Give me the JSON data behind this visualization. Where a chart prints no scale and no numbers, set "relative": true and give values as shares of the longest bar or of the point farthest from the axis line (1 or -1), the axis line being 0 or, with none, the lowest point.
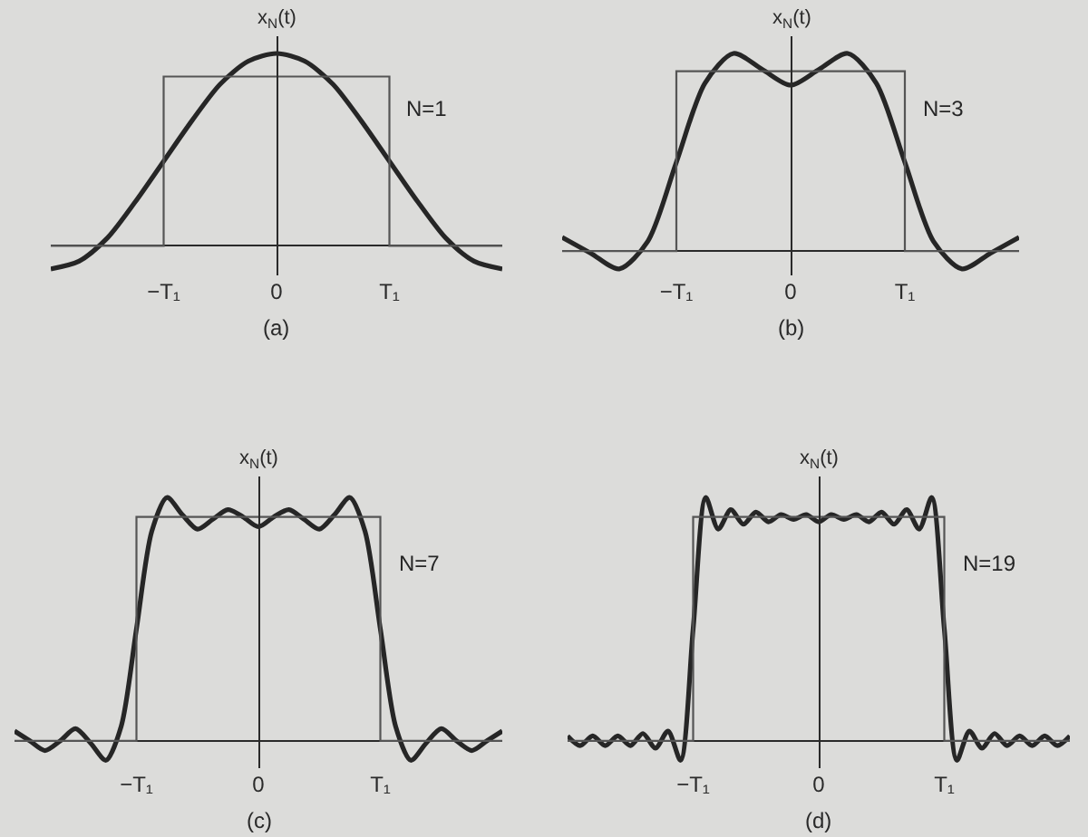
{
  "chart_data": [
    {
      "type": "line",
      "ylabel": "x$_{N}$(t)",
      "relative": true,
      "annotations": [
        "(a)"
      ],
      "categories": [
        null,
        null,
        null,
        null,
        "−T₁",
        null,
        null,
        null,
        "0",
        null,
        null,
        null,
        "T₁",
        null,
        null,
        null,
        null
      ],
      "series": [
        {
          "name": "N=1",
          "color": "#262626",
          "values": [
            -0.12,
            -0.08,
            0.04,
            0.23,
            0.44,
            0.65,
            0.84,
            0.96,
            1,
            0.96,
            0.84,
            0.65,
            0.44,
            0.23,
            0.04,
            -0.08,
            -0.12
          ]
        },
        {
          "type": "step",
          "color": "#555555",
          "values": [
            0,
            0,
            0,
            0,
            0.88,
            0.88,
            0.88,
            0.88,
            0.88,
            0.88,
            0.88,
            0.88,
            0,
            0,
            0,
            0,
            0
          ]
        }
      ]
    },
    {
      "type": "line",
      "ylabel": "x$_{N}$(t)",
      "relative": true,
      "annotations": [
        "(b)"
      ],
      "categories": [
        null,
        null,
        null,
        null,
        "−T₁",
        null,
        null,
        null,
        "0",
        null,
        null,
        null,
        "T₁",
        null,
        null,
        null,
        null
      ],
      "series": [
        {
          "name": "N=3",
          "color": "#262626",
          "values": [
            0.07,
            -0.01,
            -0.09,
            0.05,
            0.45,
            0.85,
            1,
            0.92,
            0.84,
            0.92,
            1,
            0.85,
            0.45,
            0.05,
            -0.09,
            -0.01,
            0.07
          ]
        },
        {
          "type": "step",
          "color": "#555555",
          "values": [
            0,
            0,
            0,
            0,
            0.91,
            0.91,
            0.91,
            0.91,
            0.91,
            0.91,
            0.91,
            0.91,
            0,
            0,
            0,
            0,
            0
          ]
        }
      ]
    },
    {
      "type": "line",
      "ylabel": "x$_{N}$(t)",
      "relative": true,
      "annotations": [
        "(c)"
      ],
      "categories": [
        null,
        null,
        null,
        null,
        null,
        null,
        null,
        null,
        "−T₁",
        null,
        null,
        null,
        null,
        null,
        null,
        null,
        "0",
        null,
        null,
        null,
        null,
        null,
        null,
        null,
        "T₁",
        null,
        null,
        null,
        null,
        null,
        null,
        null,
        null
      ],
      "series": [
        {
          "name": "N=7",
          "color": "#262626",
          "values": [
            0.04,
            0,
            -0.04,
            0,
            0.05,
            -0.01,
            -0.08,
            0.06,
            0.46,
            0.86,
            1,
            0.93,
            0.87,
            0.91,
            0.95,
            0.92,
            0.88,
            0.92,
            0.95,
            0.91,
            0.87,
            0.93,
            1,
            0.86,
            0.46,
            0.06,
            -0.08,
            -0.01,
            0.05,
            0,
            -0.04,
            0,
            0.04
          ]
        },
        {
          "type": "step",
          "color": "#555555",
          "values": [
            0,
            0,
            0,
            0,
            0,
            0,
            0,
            0,
            0.92,
            0.92,
            0.92,
            0.92,
            0.92,
            0.92,
            0.92,
            0.92,
            0.92,
            0.92,
            0.92,
            0.92,
            0.92,
            0.92,
            0.92,
            0.92,
            0,
            0,
            0,
            0,
            0,
            0,
            0,
            0,
            0
          ]
        }
      ]
    },
    {
      "type": "line",
      "ylabel": "x$_{N}$(t)",
      "relative": true,
      "annotations": [
        "(d)"
      ],
      "categories": [
        null,
        null,
        null,
        null,
        null,
        null,
        null,
        null,
        null,
        null,
        "−T₁",
        null,
        null,
        null,
        null,
        null,
        null,
        null,
        null,
        null,
        "0",
        null,
        null,
        null,
        null,
        null,
        null,
        null,
        null,
        null,
        "T₁",
        null,
        null,
        null,
        null,
        null,
        null,
        null,
        null,
        null,
        null
      ],
      "series": [
        {
          "name": "N=19",
          "color": "#262626",
          "values": [
            0.02,
            -0.02,
            0.02,
            -0.02,
            0.02,
            -0.02,
            0.03,
            -0.03,
            0.04,
            -0.08,
            0.46,
            1,
            0.87,
            0.95,
            0.89,
            0.94,
            0.9,
            0.93,
            0.91,
            0.93,
            0.9,
            0.93,
            0.91,
            0.93,
            0.9,
            0.94,
            0.89,
            0.95,
            0.87,
            1,
            0.46,
            -0.08,
            0.04,
            -0.03,
            0.03,
            -0.02,
            0.02,
            -0.02,
            0.02,
            -0.02,
            0.02
          ]
        },
        {
          "type": "step",
          "color": "#555555",
          "values": [
            0,
            0,
            0,
            0,
            0,
            0,
            0,
            0,
            0,
            0,
            0.92,
            0.92,
            0.92,
            0.92,
            0.92,
            0.92,
            0.92,
            0.92,
            0.92,
            0.92,
            0.92,
            0.92,
            0.92,
            0.92,
            0.92,
            0.92,
            0.92,
            0.92,
            0.92,
            0.92,
            0,
            0,
            0,
            0,
            0,
            0,
            0,
            0,
            0,
            0,
            0
          ]
        }
      ]
    }
  ]
}
